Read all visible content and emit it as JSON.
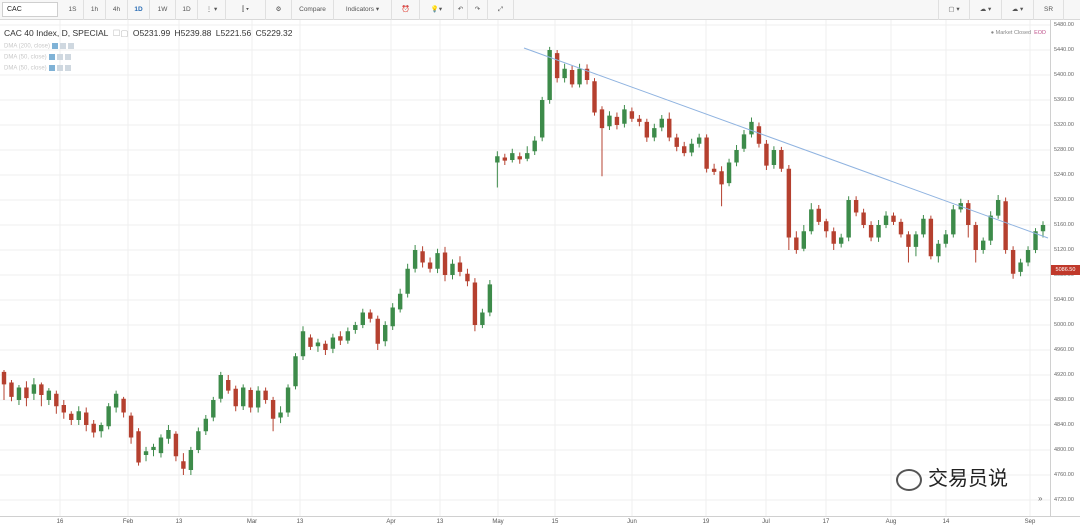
{
  "toolbar": {
    "symbol": "CAC",
    "intervals": [
      "1S",
      "1h",
      "4h",
      "1D",
      "1W",
      "1D"
    ],
    "selected_interval": "1D",
    "compare_label": "Compare",
    "indicators_label": "Indicators",
    "right_label": "SR"
  },
  "legend": {
    "title": "CAC 40 Index, D, SPECIAL",
    "open": "O5231.99",
    "high": "H5239.88",
    "low": "L5221.56",
    "close": "C5229.32",
    "ma_labels": [
      "DMA (200, close)",
      "DMA (50, close)",
      "DMA (50, close)"
    ]
  },
  "status": {
    "text": "Market Closed",
    "eod": "EOD"
  },
  "current_price": "5086.50",
  "price_axis": [
    "5480.00",
    "5440.00",
    "5400.00",
    "5360.00",
    "5320.00",
    "5280.00",
    "5240.00",
    "5200.00",
    "5160.00",
    "5120.00",
    "5080.00",
    "5040.00",
    "5000.00",
    "4960.00",
    "4920.00",
    "4880.00",
    "4840.00",
    "4800.00",
    "4760.00",
    "4720.00"
  ],
  "time_axis": [
    "16",
    "Feb",
    "13",
    "Mar",
    "13",
    "Apr",
    "13",
    "May",
    "15",
    "Jun",
    "19",
    "Jul",
    "17",
    "Aug",
    "14",
    "Sep"
  ],
  "watermark": "交易员说",
  "colors": {
    "up": "#3d8b4a",
    "down": "#b5402f",
    "trendline": "#8fb3e0",
    "grid": "#efefef"
  },
  "chart_data": {
    "type": "candlestick",
    "ylim": [
      4700,
      5500
    ],
    "trendline": [
      [
        524,
        48
      ],
      [
        1048,
        238
      ]
    ],
    "candles": [
      [
        1,
        4925,
        4905,
        4928,
        4880
      ],
      [
        2,
        4908,
        4885,
        4912,
        4878
      ],
      [
        3,
        4880,
        4900,
        4904,
        4872
      ],
      [
        4,
        4900,
        4883,
        4910,
        4870
      ],
      [
        5,
        4890,
        4905,
        4915,
        4880
      ],
      [
        6,
        4905,
        4888,
        4908,
        4870
      ],
      [
        7,
        4880,
        4895,
        4899,
        4872
      ],
      [
        8,
        4890,
        4870,
        4895,
        4858
      ],
      [
        9,
        4872,
        4860,
        4880,
        4850
      ],
      [
        10,
        4858,
        4848,
        4862,
        4840
      ],
      [
        11,
        4848,
        4862,
        4870,
        4840
      ],
      [
        12,
        4860,
        4840,
        4868,
        4830
      ],
      [
        13,
        4842,
        4828,
        4848,
        4820
      ],
      [
        14,
        4830,
        4840,
        4844,
        4820
      ],
      [
        15,
        4838,
        4870,
        4875,
        4833
      ],
      [
        16,
        4868,
        4890,
        4895,
        4860
      ],
      [
        17,
        4882,
        4860,
        4885,
        4852
      ],
      [
        18,
        4855,
        4820,
        4860,
        4810
      ],
      [
        19,
        4830,
        4780,
        4835,
        4775
      ],
      [
        20,
        4792,
        4798,
        4805,
        4782
      ],
      [
        21,
        4800,
        4805,
        4810,
        4790
      ],
      [
        22,
        4795,
        4820,
        4825,
        4788
      ],
      [
        23,
        4818,
        4832,
        4840,
        4810
      ],
      [
        24,
        4826,
        4790,
        4830,
        4782
      ],
      [
        25,
        4782,
        4770,
        4795,
        4760
      ],
      [
        26,
        4768,
        4800,
        4805,
        4760
      ],
      [
        27,
        4800,
        4830,
        4836,
        4795
      ],
      [
        28,
        4830,
        4850,
        4856,
        4824
      ],
      [
        29,
        4852,
        4880,
        4885,
        4846
      ],
      [
        30,
        4882,
        4920,
        4925,
        4876
      ],
      [
        31,
        4912,
        4895,
        4920,
        4890
      ],
      [
        32,
        4898,
        4870,
        4903,
        4862
      ],
      [
        33,
        4870,
        4900,
        4905,
        4864
      ],
      [
        34,
        4896,
        4868,
        4900,
        4860
      ],
      [
        35,
        4868,
        4895,
        4902,
        4860
      ],
      [
        36,
        4895,
        4880,
        4900,
        4874
      ],
      [
        37,
        4880,
        4850,
        4885,
        4830
      ],
      [
        38,
        4852,
        4860,
        4870,
        4843
      ],
      [
        39,
        4860,
        4900,
        4905,
        4853
      ],
      [
        40,
        4902,
        4950,
        4955,
        4897
      ],
      [
        41,
        4950,
        4990,
        4998,
        4944
      ],
      [
        42,
        4980,
        4965,
        4985,
        4960
      ],
      [
        43,
        4966,
        4972,
        4978,
        4957
      ],
      [
        44,
        4970,
        4960,
        4975,
        4952
      ],
      [
        45,
        4962,
        4980,
        4986,
        4955
      ],
      [
        46,
        4982,
        4975,
        4990,
        4968
      ],
      [
        47,
        4975,
        4990,
        4996,
        4970
      ],
      [
        48,
        4992,
        5000,
        5005,
        4986
      ],
      [
        49,
        5000,
        5020,
        5026,
        4995
      ],
      [
        50,
        5020,
        5010,
        5025,
        5004
      ],
      [
        51,
        5010,
        4970,
        5015,
        4960
      ],
      [
        52,
        4974,
        5000,
        5006,
        4966
      ],
      [
        53,
        4998,
        5028,
        5035,
        4992
      ],
      [
        54,
        5025,
        5050,
        5058,
        5020
      ],
      [
        55,
        5050,
        5090,
        5098,
        5044
      ],
      [
        56,
        5090,
        5120,
        5128,
        5084
      ],
      [
        57,
        5118,
        5100,
        5126,
        5092
      ],
      [
        58,
        5100,
        5090,
        5108,
        5084
      ],
      [
        59,
        5090,
        5115,
        5122,
        5083
      ],
      [
        60,
        5116,
        5080,
        5125,
        5070
      ],
      [
        61,
        5080,
        5098,
        5105,
        5073
      ],
      [
        62,
        5100,
        5085,
        5110,
        5078
      ],
      [
        63,
        5082,
        5070,
        5090,
        5062
      ],
      [
        64,
        5068,
        5000,
        5075,
        4990
      ],
      [
        65,
        5000,
        5020,
        5026,
        4995
      ],
      [
        66,
        5020,
        5065,
        5072,
        5014
      ],
      [
        67,
        5260,
        5270,
        5278,
        5220
      ],
      [
        68,
        5268,
        5263,
        5274,
        5256
      ],
      [
        69,
        5264,
        5275,
        5282,
        5260
      ],
      [
        70,
        5270,
        5265,
        5276,
        5258
      ],
      [
        71,
        5266,
        5275,
        5286,
        5262
      ],
      [
        72,
        5278,
        5295,
        5302,
        5272
      ],
      [
        73,
        5300,
        5360,
        5365,
        5294
      ],
      [
        74,
        5360,
        5440,
        5445,
        5354
      ],
      [
        75,
        5435,
        5395,
        5440,
        5388
      ],
      [
        76,
        5395,
        5410,
        5418,
        5388
      ],
      [
        77,
        5408,
        5385,
        5415,
        5380
      ],
      [
        78,
        5385,
        5410,
        5418,
        5380
      ],
      [
        79,
        5410,
        5392,
        5417,
        5385
      ],
      [
        80,
        5390,
        5340,
        5395,
        5335
      ],
      [
        81,
        5345,
        5315,
        5350,
        5238
      ],
      [
        82,
        5318,
        5335,
        5342,
        5312
      ],
      [
        83,
        5333,
        5320,
        5340,
        5313
      ],
      [
        84,
        5322,
        5345,
        5352,
        5316
      ],
      [
        85,
        5342,
        5330,
        5348,
        5325
      ],
      [
        86,
        5330,
        5325,
        5336,
        5318
      ],
      [
        87,
        5325,
        5300,
        5330,
        5293
      ],
      [
        88,
        5300,
        5315,
        5322,
        5294
      ],
      [
        89,
        5316,
        5330,
        5336,
        5310
      ],
      [
        90,
        5330,
        5300,
        5340,
        5294
      ],
      [
        91,
        5300,
        5285,
        5306,
        5278
      ],
      [
        92,
        5286,
        5275,
        5293,
        5270
      ],
      [
        93,
        5276,
        5290,
        5298,
        5270
      ],
      [
        94,
        5290,
        5300,
        5306,
        5284
      ],
      [
        95,
        5300,
        5250,
        5305,
        5244
      ],
      [
        96,
        5250,
        5245,
        5258,
        5240
      ],
      [
        97,
        5246,
        5225,
        5254,
        5190
      ],
      [
        98,
        5227,
        5260,
        5266,
        5222
      ],
      [
        99,
        5260,
        5280,
        5288,
        5254
      ],
      [
        100,
        5282,
        5305,
        5312,
        5277
      ],
      [
        101,
        5305,
        5325,
        5332,
        5300
      ],
      [
        102,
        5318,
        5290,
        5324,
        5284
      ],
      [
        103,
        5290,
        5255,
        5296,
        5248
      ],
      [
        104,
        5256,
        5280,
        5286,
        5250
      ],
      [
        105,
        5280,
        5250,
        5285,
        5245
      ],
      [
        106,
        5250,
        5140,
        5256,
        5120
      ],
      [
        107,
        5140,
        5120,
        5150,
        5114
      ],
      [
        108,
        5122,
        5150,
        5160,
        5118
      ],
      [
        109,
        5150,
        5185,
        5195,
        5145
      ],
      [
        110,
        5186,
        5165,
        5192,
        5160
      ],
      [
        111,
        5166,
        5150,
        5170,
        5140
      ],
      [
        112,
        5150,
        5130,
        5156,
        5120
      ],
      [
        113,
        5130,
        5140,
        5146,
        5124
      ],
      [
        114,
        5140,
        5200,
        5206,
        5134
      ],
      [
        115,
        5200,
        5180,
        5206,
        5174
      ],
      [
        116,
        5180,
        5160,
        5186,
        5155
      ],
      [
        117,
        5160,
        5140,
        5166,
        5134
      ],
      [
        118,
        5140,
        5160,
        5168,
        5133
      ],
      [
        119,
        5160,
        5175,
        5182,
        5155
      ],
      [
        120,
        5175,
        5165,
        5180,
        5160
      ],
      [
        121,
        5165,
        5145,
        5170,
        5140
      ],
      [
        122,
        5145,
        5125,
        5150,
        5100
      ],
      [
        123,
        5125,
        5145,
        5150,
        5110
      ],
      [
        124,
        5145,
        5170,
        5176,
        5140
      ],
      [
        125,
        5170,
        5110,
        5175,
        5105
      ],
      [
        126,
        5110,
        5130,
        5136,
        5100
      ],
      [
        127,
        5130,
        5145,
        5152,
        5124
      ],
      [
        128,
        5145,
        5185,
        5192,
        5140
      ],
      [
        129,
        5185,
        5195,
        5202,
        5180
      ],
      [
        130,
        5195,
        5160,
        5200,
        5140
      ],
      [
        131,
        5160,
        5120,
        5165,
        5100
      ],
      [
        132,
        5120,
        5135,
        5140,
        5114
      ],
      [
        133,
        5135,
        5175,
        5182,
        5128
      ],
      [
        134,
        5175,
        5200,
        5208,
        5170
      ],
      [
        135,
        5198,
        5120,
        5204,
        5114
      ],
      [
        136,
        5120,
        5082,
        5126,
        5074
      ],
      [
        137,
        5085,
        5100,
        5106,
        5078
      ],
      [
        138,
        5100,
        5120,
        5126,
        5094
      ],
      [
        139,
        5120,
        5150,
        5155,
        5115
      ],
      [
        140,
        5150,
        5160,
        5166,
        5140
      ]
    ]
  }
}
